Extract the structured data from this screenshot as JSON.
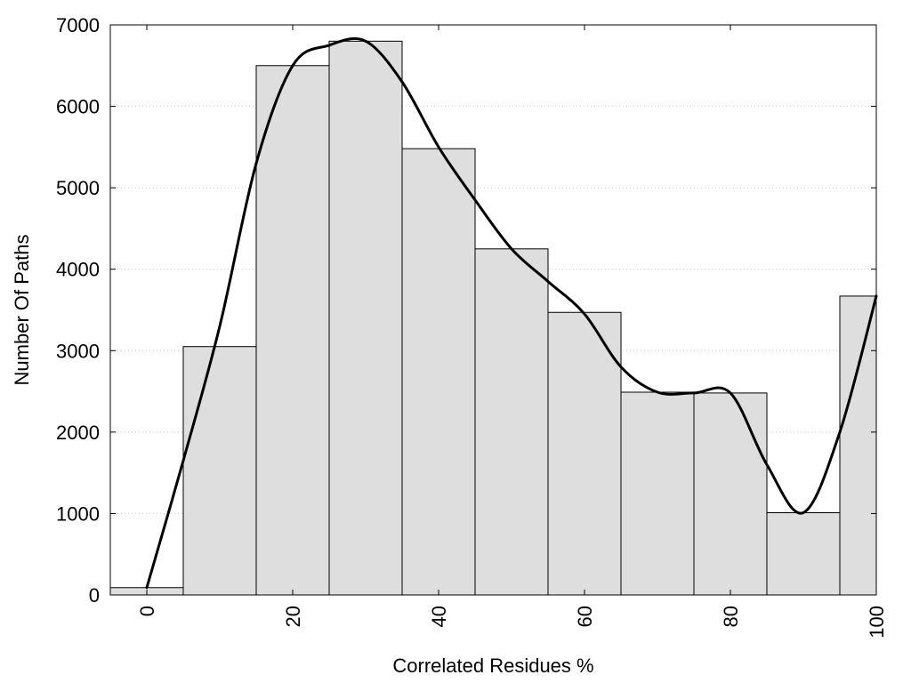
{
  "chart_data": {
    "type": "bar",
    "title": "",
    "xlabel": "Correlated Residues %",
    "ylabel": "Number Of Paths",
    "xlim": [
      -5,
      100
    ],
    "ylim": [
      0,
      7000
    ],
    "grid": {
      "y": true,
      "style": "dotted"
    },
    "colors": {
      "bar_fill": "#dedede",
      "bar_stroke": "#000000",
      "curve": "#000000",
      "grid": "#c8c8c8"
    },
    "bin_width": 10,
    "x": [
      0,
      10,
      20,
      30,
      40,
      50,
      60,
      70,
      80,
      90,
      100
    ],
    "values": [
      90,
      3050,
      6500,
      6800,
      5480,
      4250,
      3470,
      2490,
      2480,
      1010,
      3670
    ],
    "x_ticks": [
      0,
      20,
      40,
      60,
      80,
      100
    ],
    "x_tick_labels": [
      "0",
      "20",
      "40",
      "60",
      "80",
      "100"
    ],
    "y_ticks": [
      0,
      1000,
      2000,
      3000,
      4000,
      5000,
      6000,
      7000
    ],
    "y_tick_labels": [
      "0",
      "1000",
      "2000",
      "3000",
      "4000",
      "5000",
      "6000",
      "7000"
    ],
    "curve": {
      "x": [
        0,
        5,
        10,
        15,
        20,
        25,
        30,
        35,
        40,
        45,
        50,
        55,
        60,
        65,
        70,
        75,
        80,
        85,
        90,
        95,
        100
      ],
      "y": [
        90,
        1650,
        3300,
        5300,
        6500,
        6750,
        6800,
        6300,
        5500,
        4850,
        4250,
        3850,
        3450,
        2800,
        2490,
        2480,
        2480,
        1600,
        1010,
        2000,
        3670
      ]
    }
  }
}
